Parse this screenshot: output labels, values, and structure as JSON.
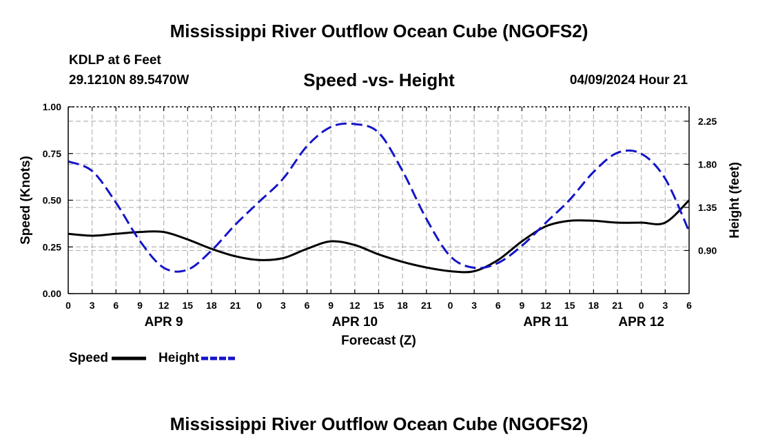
{
  "header": {
    "title": "Mississippi River Outflow Ocean Cube (NGOFS2)",
    "station": "KDLP at 6 Feet",
    "coords": "29.1210N  89.5470W",
    "subtitle": "Speed -vs- Height",
    "datetime": "04/09/2024 Hour 21",
    "repeat_title": "Mississippi River Outflow Ocean Cube (NGOFS2)"
  },
  "chart_data": {
    "type": "line",
    "title": "Speed -vs- Height",
    "xlabel": "Forecast (Z)",
    "ylabel_left": "Speed (Knots)",
    "ylabel_right": "Height (feet)",
    "grid": true,
    "legend_position": "bottom-left",
    "x_range_hours": [
      0,
      78
    ],
    "x_tick_labels": [
      "0",
      "3",
      "6",
      "9",
      "12",
      "15",
      "18",
      "21",
      "0",
      "3",
      "6",
      "9",
      "12",
      "15",
      "18",
      "21",
      "0",
      "3",
      "6",
      "9",
      "12",
      "15",
      "18",
      "21",
      "0",
      "3",
      "6"
    ],
    "day_labels": [
      {
        "label": "APR 9",
        "hour": 12
      },
      {
        "label": "APR 10",
        "hour": 36
      },
      {
        "label": "APR 11",
        "hour": 60
      },
      {
        "label": "APR 12",
        "hour": 72
      }
    ],
    "left_axis": {
      "range": [
        0,
        1.0
      ],
      "ticks": [
        "0.00",
        "0.25",
        "0.50",
        "0.75",
        "1.00"
      ],
      "values": [
        0,
        0.25,
        0.5,
        0.75,
        1.0
      ]
    },
    "right_axis": {
      "range": [
        0.45,
        2.4
      ],
      "ticks": [
        "0.90",
        "1.35",
        "1.80",
        "2.25"
      ],
      "values": [
        0.9,
        1.35,
        1.8,
        2.25
      ]
    },
    "series": [
      {
        "name": "Speed",
        "axis": "left",
        "color": "#000000",
        "style": "solid",
        "x": [
          0,
          3,
          6,
          9,
          12,
          15,
          18,
          21,
          24,
          27,
          30,
          33,
          36,
          39,
          42,
          45,
          48,
          51,
          54,
          57,
          60,
          63,
          66,
          69,
          72,
          75,
          78
        ],
        "values": [
          0.32,
          0.31,
          0.32,
          0.33,
          0.33,
          0.29,
          0.24,
          0.2,
          0.18,
          0.19,
          0.24,
          0.28,
          0.26,
          0.21,
          0.17,
          0.14,
          0.12,
          0.12,
          0.18,
          0.28,
          0.36,
          0.39,
          0.39,
          0.38,
          0.38,
          0.38,
          0.5
        ]
      },
      {
        "name": "Height",
        "axis": "right",
        "color": "#1414c8",
        "style": "dashed",
        "x": [
          0,
          3,
          6,
          9,
          12,
          15,
          18,
          21,
          24,
          27,
          30,
          33,
          36,
          39,
          42,
          45,
          48,
          51,
          54,
          57,
          60,
          63,
          66,
          69,
          72,
          75,
          78
        ],
        "values": [
          1.83,
          1.73,
          1.4,
          1.0,
          0.72,
          0.7,
          0.9,
          1.17,
          1.41,
          1.65,
          1.99,
          2.19,
          2.22,
          2.13,
          1.73,
          1.23,
          0.84,
          0.72,
          0.77,
          0.95,
          1.19,
          1.43,
          1.72,
          1.92,
          1.91,
          1.65,
          1.1
        ]
      }
    ],
    "legend": [
      {
        "label": "Speed",
        "color": "#000000",
        "style": "solid"
      },
      {
        "label": "Height",
        "color": "#1414c8",
        "style": "dashed"
      }
    ]
  }
}
